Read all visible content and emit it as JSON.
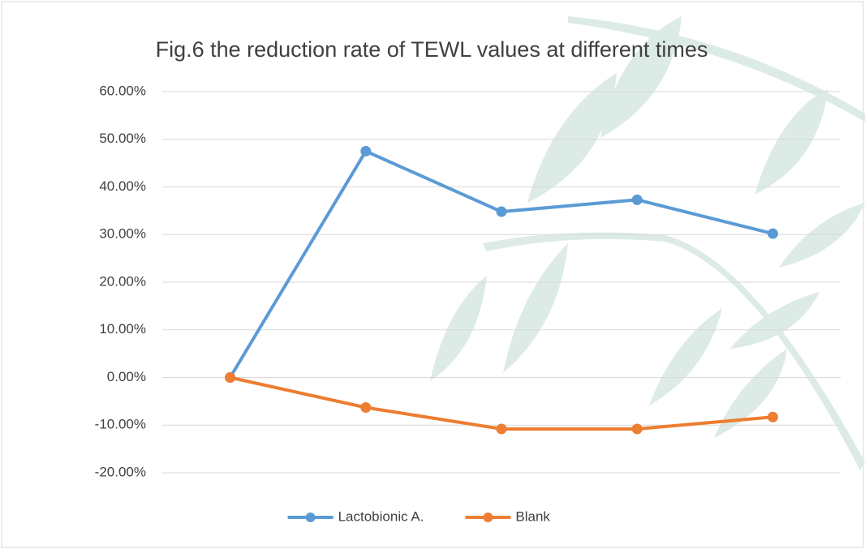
{
  "chart_data": {
    "type": "line",
    "title": "Fig.6 the reduction rate of TEWL values at different times",
    "categories": [
      null,
      null,
      null,
      null,
      null
    ],
    "series": [
      {
        "name": "Lactobionic A.",
        "color": "#5b9bd5",
        "values": [
          0,
          47.5,
          34.8,
          37.3,
          30.2
        ]
      },
      {
        "name": "Blank",
        "color": "#ed7d31",
        "values": [
          0,
          -6.3,
          -10.8,
          -10.8,
          -8.3
        ]
      }
    ],
    "ylim": [
      -20,
      60
    ],
    "yticks": [
      {
        "value": -20,
        "label": "-20.00%"
      },
      {
        "value": -10,
        "label": "-10.00%"
      },
      {
        "value": 0,
        "label": "0.00%"
      },
      {
        "value": 10,
        "label": "10.00%"
      },
      {
        "value": 20,
        "label": "20.00%"
      },
      {
        "value": 30,
        "label": "30.00%"
      },
      {
        "value": 40,
        "label": "40.00%"
      },
      {
        "value": 50,
        "label": "50.00%"
      },
      {
        "value": 60,
        "label": "60.00%"
      }
    ],
    "grid": true,
    "legend": "bottom"
  }
}
